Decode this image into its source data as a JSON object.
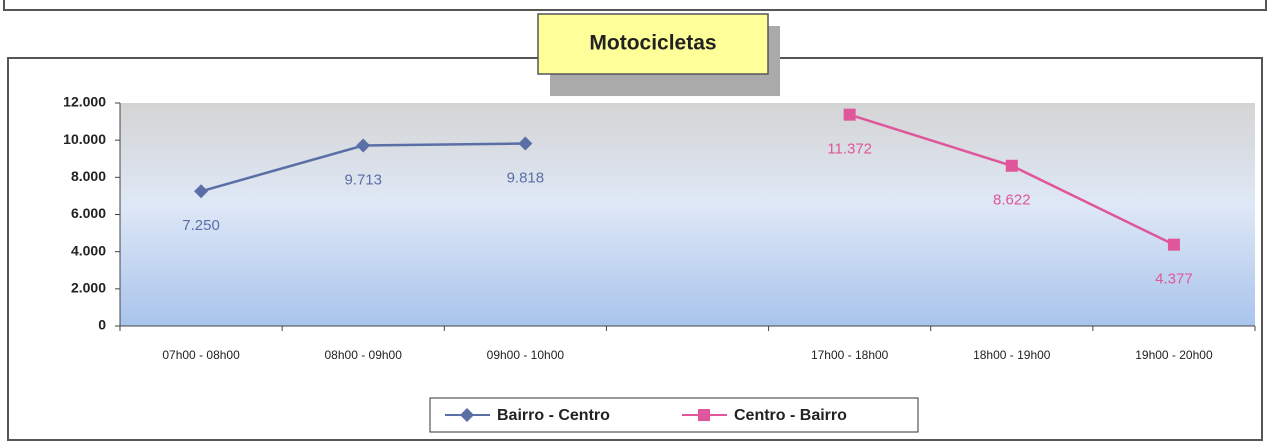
{
  "chart_data": {
    "type": "line",
    "title": "Motocicletas",
    "categories": [
      "07h00 - 08h00",
      "08h00 - 09h00",
      "09h00 - 10h00",
      null,
      "17h00 - 18h00",
      "18h00 - 19h00",
      "19h00 - 20h00"
    ],
    "series": [
      {
        "name": "Bairro - Centro",
        "color": "#5a6fa6",
        "marker": "diamond",
        "values": [
          7250,
          9713,
          9818,
          null,
          null,
          null,
          null
        ],
        "value_labels": [
          "7.250",
          "9.713",
          "9.818",
          null,
          null,
          null,
          null
        ]
      },
      {
        "name": "Centro - Bairro",
        "color": "#e0569a",
        "marker": "square",
        "values": [
          null,
          null,
          null,
          null,
          11372,
          8622,
          4377
        ],
        "value_labels": [
          null,
          null,
          null,
          null,
          "11.372",
          "8.622",
          "4.377"
        ]
      }
    ],
    "ylim": [
      0,
      12000
    ],
    "yticks": [
      0,
      {
        "value": 2000,
        "label": "2.000"
      },
      {
        "value": 4000,
        "label": "4.000"
      },
      {
        "value": 6000,
        "label": "6.000"
      },
      {
        "value": 8000,
        "label": "8.000"
      },
      {
        "value": 10000,
        "label": "10.000"
      },
      {
        "value": 12000,
        "label": "12.000"
      }
    ],
    "legend": "bottom"
  }
}
